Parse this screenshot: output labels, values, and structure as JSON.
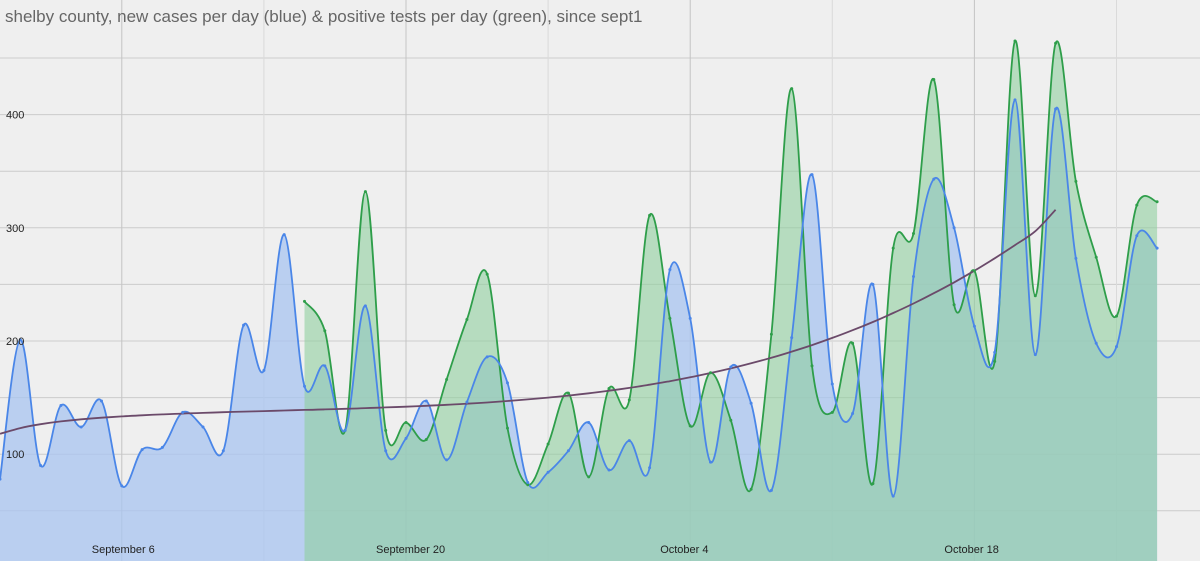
{
  "chart_data": {
    "type": "area",
    "title": "shelby county, new cases per day (blue) & positive tests per day (green), since sept1",
    "xlabel": "",
    "ylabel": "",
    "x_ticks": [
      {
        "day": 6,
        "label": "September 6"
      },
      {
        "day": 20,
        "label": "September 20"
      },
      {
        "day": 34,
        "label": "October 4"
      },
      {
        "day": 48,
        "label": "October 18"
      }
    ],
    "y_ticks": [
      100,
      200,
      300,
      400
    ],
    "xlim": [
      0,
      59
    ],
    "ylim": [
      10,
      490
    ],
    "grid": true,
    "colors": {
      "blue_line": "#4a86e8",
      "blue_fill": "#a8c4f0",
      "green_line": "#2e9e4a",
      "green_fill": "#8fcf9f",
      "overlap_fill": "#8dbfba",
      "trend": "#6b4a6a",
      "grid": "#cccccc",
      "background": "#efefef"
    },
    "series": [
      {
        "key": "blue",
        "x_start": 0,
        "values": [
          78,
          201,
          90,
          143,
          124,
          147,
          72,
          104,
          106,
          137,
          124,
          103,
          214,
          174,
          294,
          160,
          178,
          121,
          231,
          103,
          114,
          147,
          95,
          146,
          186,
          163,
          75,
          84,
          103,
          128,
          86,
          112,
          88,
          263,
          220,
          93,
          177,
          145,
          68,
          203,
          347,
          162,
          136,
          250,
          63,
          257,
          343,
          300,
          213,
          190,
          413,
          188,
          405,
          273,
          198,
          195,
          293,
          282
        ]
      },
      {
        "key": "green",
        "x_start": 15,
        "values": [
          235,
          209,
          121,
          332,
          121,
          128,
          113,
          166,
          219,
          259,
          123,
          73,
          109,
          154,
          80,
          158,
          148,
          311,
          220,
          125,
          172,
          130,
          69,
          206,
          423,
          178,
          137,
          198,
          74,
          282,
          295,
          431,
          232,
          262,
          182,
          465,
          240,
          463,
          341,
          274,
          222,
          320,
          323
        ]
      },
      {
        "key": "trend",
        "x_start": 0,
        "values": [
          118,
          123.1,
          126.5,
          129,
          130.8,
          132.2,
          133.4,
          134.4,
          135.2,
          135.9,
          136.5,
          137.1,
          137.6,
          138.1,
          138.6,
          139.1,
          139.6,
          140.1,
          140.7,
          141.3,
          142,
          142.8,
          143.6,
          144.6,
          145.7,
          147,
          148.4,
          150,
          151.8,
          153.8,
          156.1,
          158.6,
          161.4,
          164.5,
          167.9,
          171.7,
          175.8,
          180.3,
          185.2,
          190.6,
          196.4,
          202.7,
          209.5,
          216.8,
          224.7,
          233.1,
          242.2,
          251.8,
          262.1,
          273.1,
          284.7,
          297,
          316
        ]
      }
    ]
  }
}
